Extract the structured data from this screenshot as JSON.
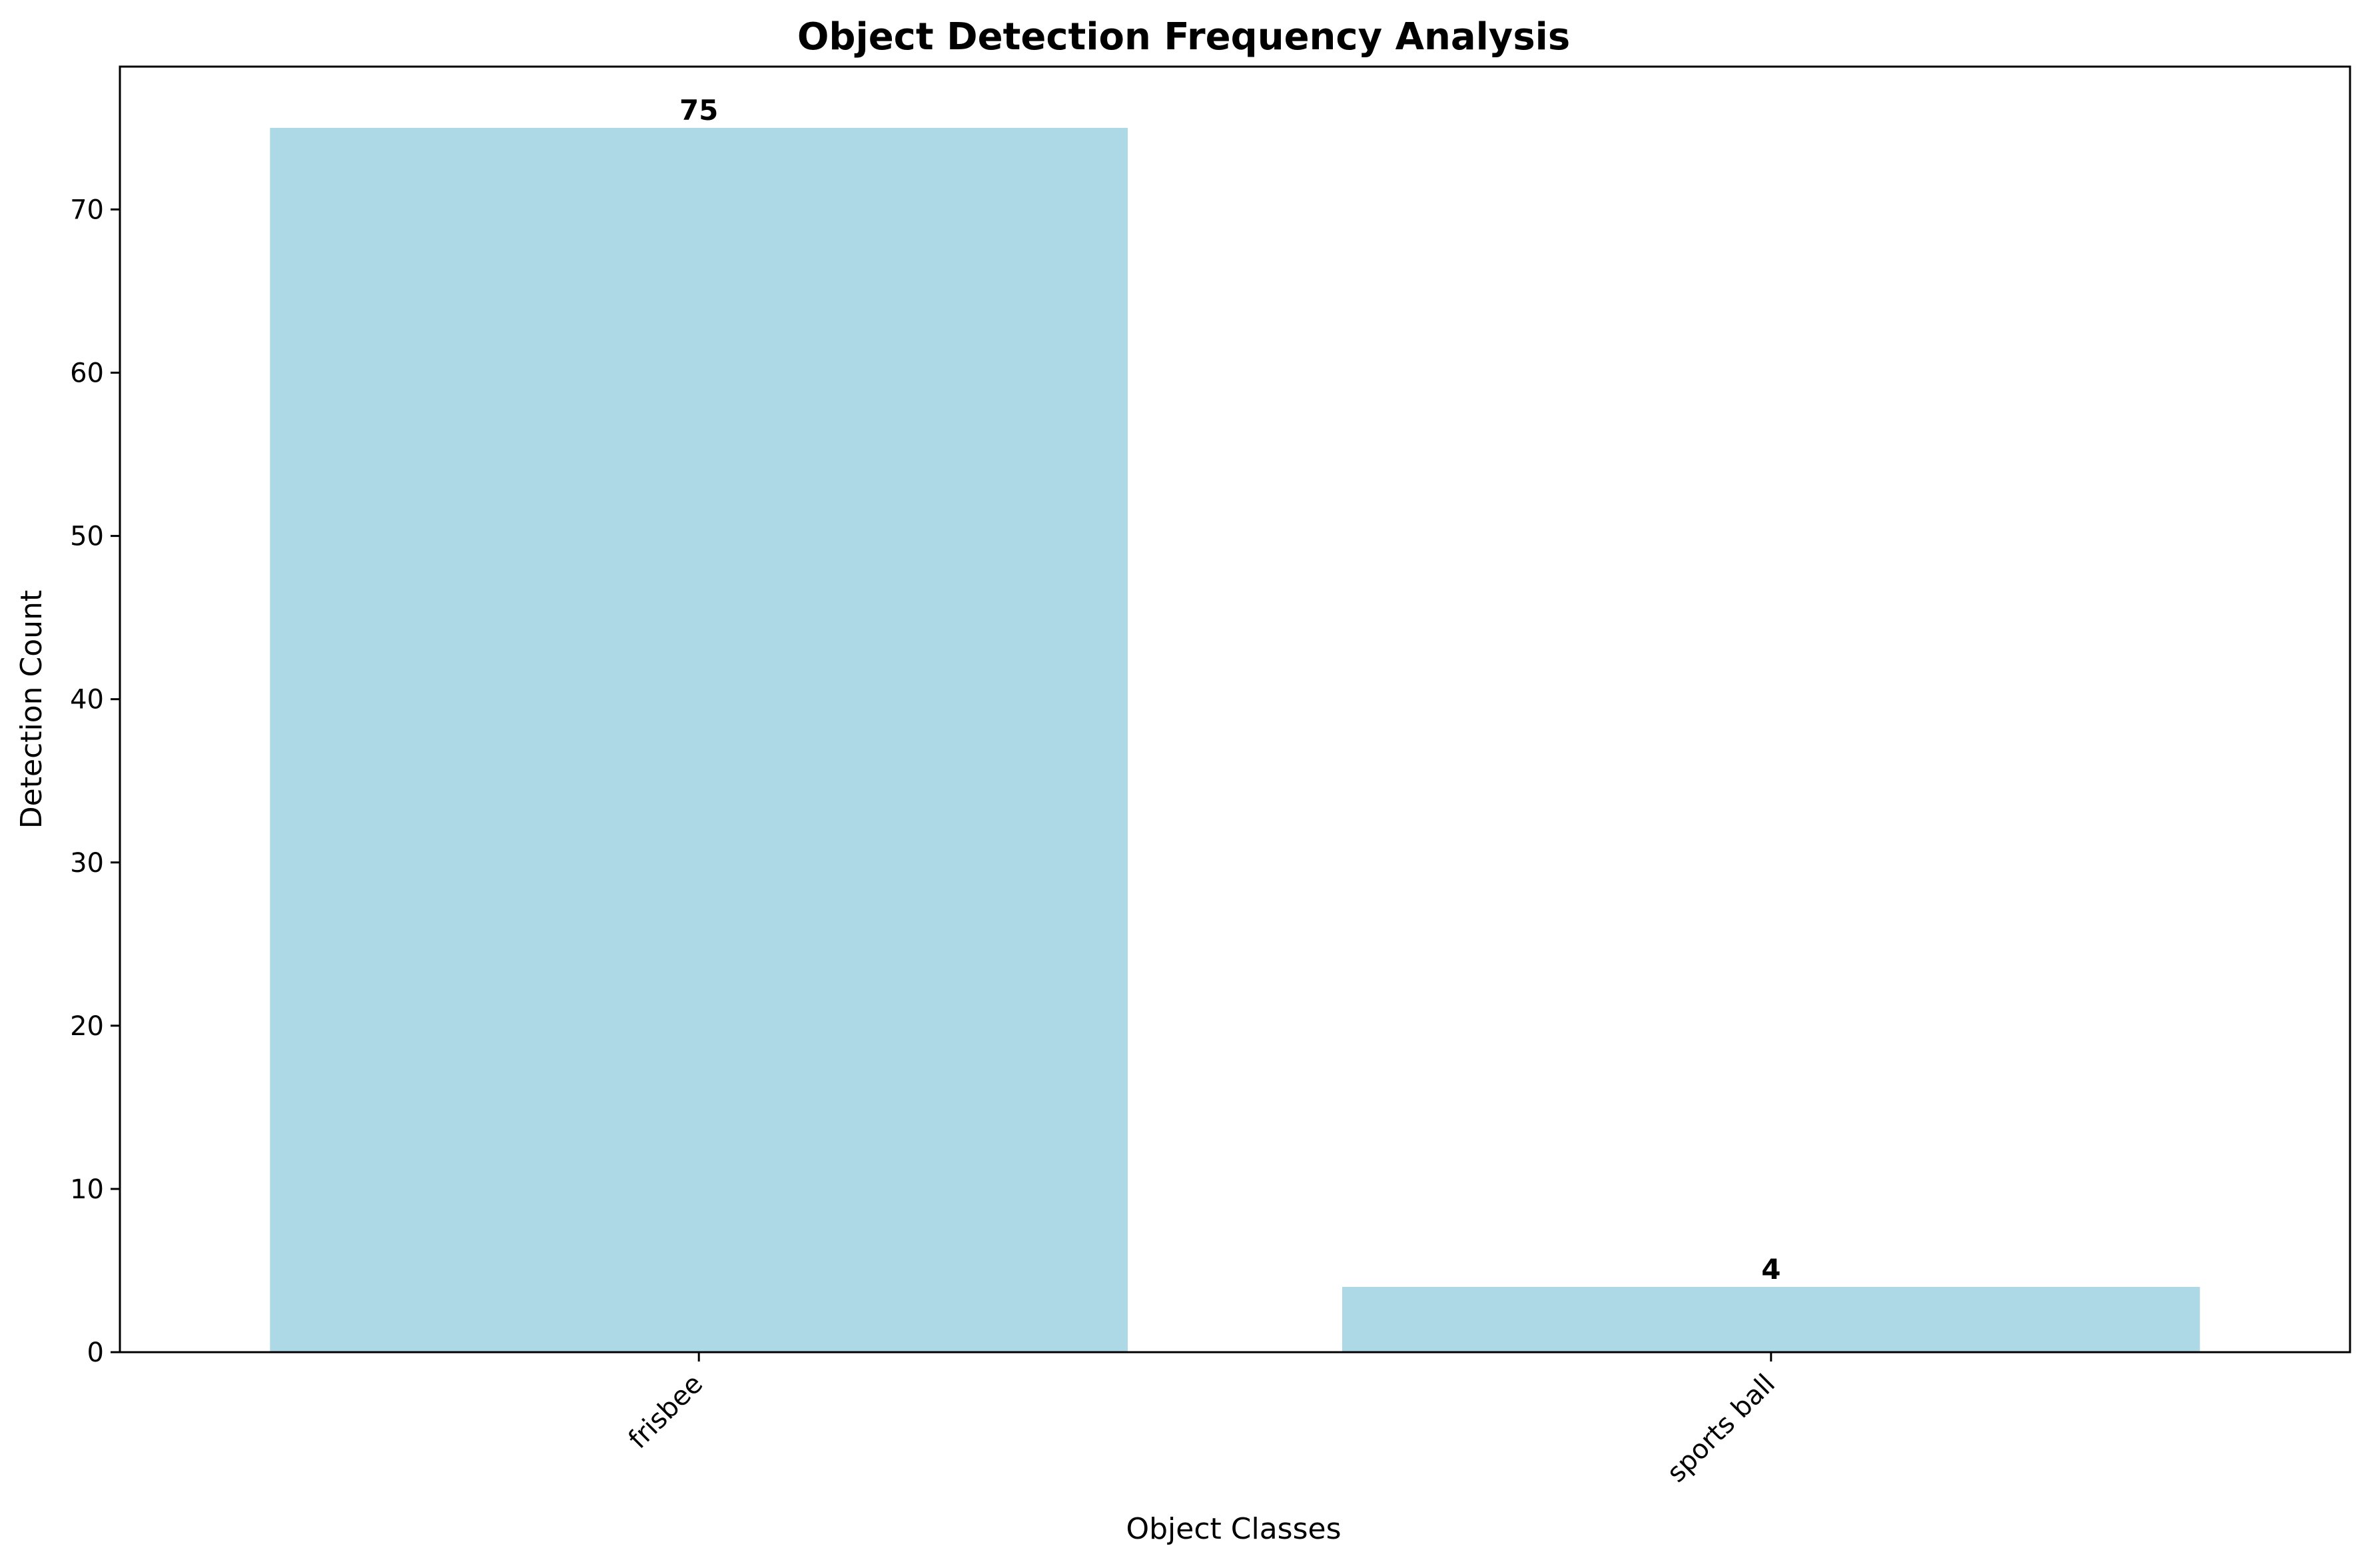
{
  "chart_data": {
    "type": "bar",
    "title": "Object Detection Frequency Analysis",
    "xlabel": "Object Classes",
    "ylabel": "Detection Count",
    "categories": [
      "frisbee",
      "sports ball"
    ],
    "values": [
      75,
      4
    ],
    "value_labels": [
      "75",
      "4"
    ],
    "ylim": [
      0,
      78.75
    ],
    "yticks": [
      0,
      10,
      20,
      30,
      40,
      50,
      60,
      70
    ],
    "ytick_labels": [
      "0",
      "10",
      "20",
      "30",
      "40",
      "50",
      "60",
      "70"
    ],
    "bar_color": "#add8e6",
    "grid": false,
    "legend": "none"
  }
}
